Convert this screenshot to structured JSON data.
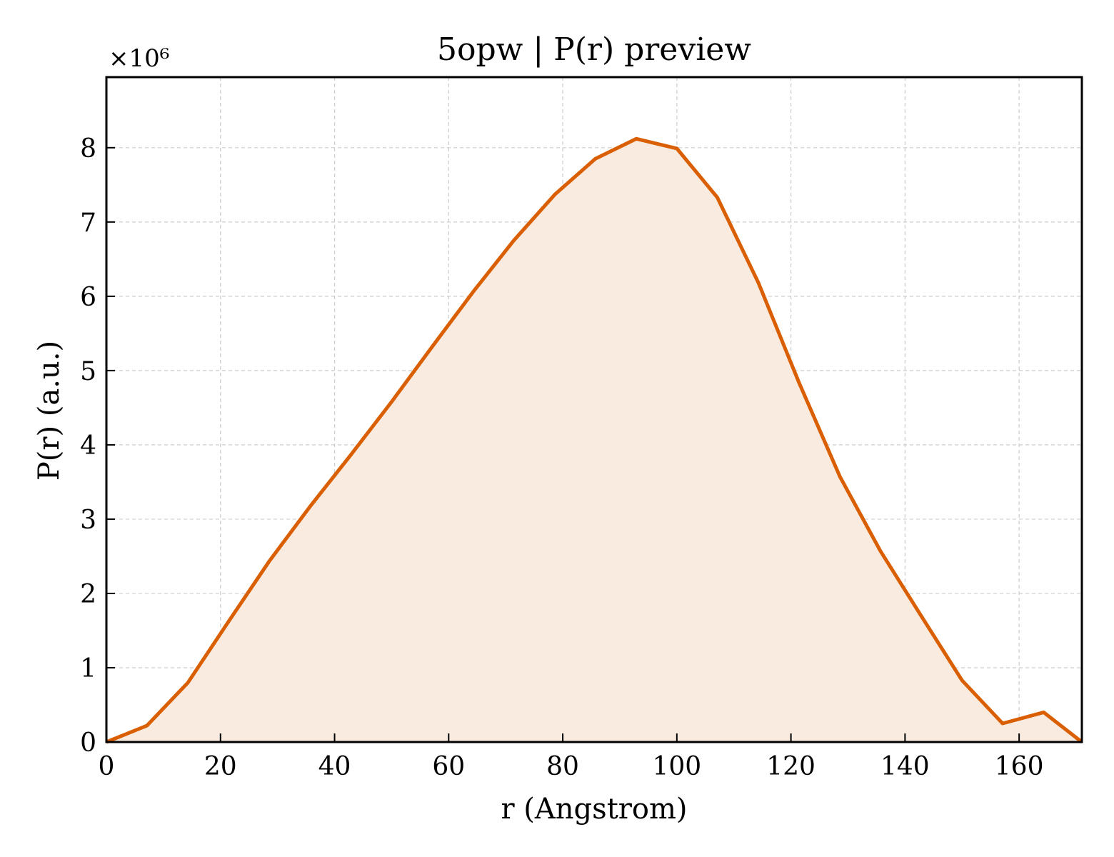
{
  "chart_data": {
    "type": "area",
    "title": "5opw | P(r) preview",
    "xlabel": "r (Angstrom)",
    "ylabel": "P(r) (a.u.)",
    "y_offset_label": "×10⁶",
    "xlim": [
      0,
      171
    ],
    "ylim": [
      0,
      8.95
    ],
    "x_ticks": [
      0,
      20,
      40,
      60,
      80,
      100,
      120,
      140,
      160
    ],
    "y_ticks": [
      0,
      1,
      2,
      3,
      4,
      5,
      6,
      7,
      8
    ],
    "grid": true,
    "line_color": "#d95f02",
    "fill_color": "#f9ebe0",
    "series": [
      {
        "x": [
          0,
          7.1,
          14.3,
          21.4,
          28.6,
          35.7,
          42.9,
          50.0,
          57.1,
          64.3,
          71.4,
          78.6,
          85.7,
          92.9,
          100.0,
          107.1,
          114.3,
          121.4,
          128.6,
          135.7,
          142.9,
          150.0,
          157.1,
          164.3,
          171.0
        ],
        "values": [
          0.0,
          0.22,
          0.8,
          1.62,
          2.44,
          3.17,
          3.87,
          4.58,
          5.32,
          6.06,
          6.75,
          7.37,
          7.85,
          8.12,
          7.99,
          7.33,
          6.18,
          4.84,
          3.57,
          2.57,
          1.69,
          0.83,
          0.25,
          0.4,
          0.0
        ]
      }
    ]
  }
}
